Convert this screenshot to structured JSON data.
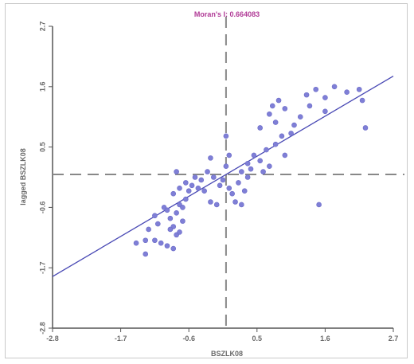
{
  "chart_data": {
    "type": "scatter",
    "title": "Moran's I: 0.664083",
    "xlabel": "BSZLK08",
    "ylabel": "lagged BSZLK08",
    "xlim": [
      -2.8,
      2.7
    ],
    "ylim": [
      -2.8,
      2.7
    ],
    "xticks": [
      "-2.8",
      "-1.7",
      "-0.6",
      "0.5",
      "1.6",
      "2.7"
    ],
    "yticks": [
      "-2.8",
      "-1.7",
      "-0.6",
      "0.5",
      "1.6",
      "2.7"
    ],
    "mean_x": 0.0,
    "mean_y": 0.0,
    "regression": {
      "slope": 0.664,
      "intercept": 0.0
    },
    "grid": false,
    "colors": {
      "points": "#7f7fd6",
      "line": "#4848b4",
      "axes": "#555555",
      "mean_lines": "#888888",
      "title": "#b03a96"
    },
    "points": [
      [
        -1.25,
        -1.0
      ],
      [
        -1.15,
        -1.2
      ],
      [
        -1.05,
        -1.25
      ],
      [
        -0.95,
        -1.3
      ],
      [
        -0.85,
        -1.35
      ],
      [
        -0.8,
        -1.1
      ],
      [
        -1.1,
        -0.9
      ],
      [
        -0.9,
        -0.8
      ],
      [
        -1.15,
        -0.75
      ],
      [
        -1.0,
        -0.6
      ],
      [
        -0.8,
        -0.7
      ],
      [
        -0.75,
        -0.55
      ],
      [
        -0.85,
        -0.35
      ],
      [
        -0.65,
        -0.45
      ],
      [
        -0.6,
        -0.3
      ],
      [
        -0.55,
        -0.2
      ],
      [
        -0.45,
        -0.25
      ],
      [
        -0.4,
        -0.1
      ],
      [
        -0.65,
        -0.15
      ],
      [
        -0.95,
        -0.65
      ],
      [
        -0.85,
        -0.95
      ],
      [
        -0.75,
        -1.05
      ],
      [
        -0.7,
        -0.85
      ],
      [
        -0.9,
        -1.0
      ],
      [
        -1.3,
        -1.2
      ],
      [
        -0.7,
        -0.6
      ],
      [
        -0.75,
        -0.25
      ],
      [
        -0.8,
        0.05
      ],
      [
        -0.5,
        -0.05
      ],
      [
        -0.35,
        -0.3
      ],
      [
        -0.25,
        -0.5
      ],
      [
        -0.15,
        -0.55
      ],
      [
        -0.2,
        -0.05
      ],
      [
        -0.1,
        -0.2
      ],
      [
        -0.05,
        -0.1
      ],
      [
        0.05,
        -0.25
      ],
      [
        0.1,
        -0.35
      ],
      [
        0.15,
        -0.5
      ],
      [
        0.2,
        -0.15
      ],
      [
        0.3,
        -0.3
      ],
      [
        0.35,
        -0.05
      ],
      [
        0.0,
        0.15
      ],
      [
        0.05,
        0.35
      ],
      [
        -0.25,
        0.3
      ],
      [
        -0.3,
        0.05
      ],
      [
        0.25,
        0.05
      ],
      [
        0.35,
        0.2
      ],
      [
        0.45,
        0.35
      ],
      [
        0.55,
        0.25
      ],
      [
        0.6,
        0.05
      ],
      [
        0.7,
        0.15
      ],
      [
        0.65,
        0.45
      ],
      [
        0.8,
        0.55
      ],
      [
        0.95,
        0.35
      ],
      [
        1.05,
        0.75
      ],
      [
        0.55,
        0.85
      ],
      [
        0.7,
        1.1
      ],
      [
        0.8,
        0.95
      ],
      [
        0.85,
        1.35
      ],
      [
        0.95,
        1.2
      ],
      [
        1.1,
        0.9
      ],
      [
        1.2,
        1.05
      ],
      [
        1.3,
        1.45
      ],
      [
        1.45,
        1.55
      ],
      [
        1.35,
        1.25
      ],
      [
        1.6,
        1.4
      ],
      [
        1.75,
        1.6
      ],
      [
        1.95,
        1.5
      ],
      [
        2.15,
        1.55
      ],
      [
        2.2,
        1.35
      ],
      [
        2.25,
        0.85
      ],
      [
        1.6,
        1.15
      ],
      [
        0.75,
        1.25
      ],
      [
        1.5,
        -0.55
      ],
      [
        0.0,
        0.7
      ],
      [
        0.25,
        -0.55
      ],
      [
        -1.3,
        -1.45
      ],
      [
        -1.45,
        -1.25
      ],
      [
        0.4,
        0.1
      ],
      [
        0.9,
        0.7
      ]
    ]
  }
}
